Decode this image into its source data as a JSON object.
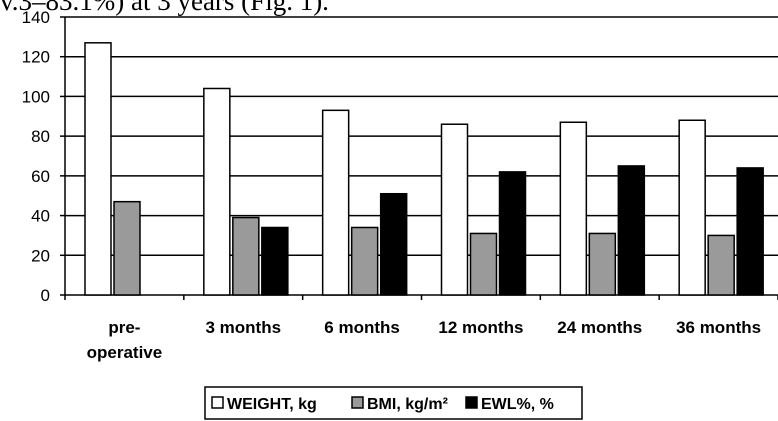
{
  "cropped_text": "v.3–83.1%) at 3 years (Fig. 1).",
  "chart_data": {
    "type": "bar",
    "categories": [
      [
        "pre-",
        "operative"
      ],
      [
        "3 months"
      ],
      [
        "6 months"
      ],
      [
        "12 months"
      ],
      [
        "24 months"
      ],
      [
        "36 months"
      ]
    ],
    "series": [
      {
        "name": "WEIGHT, kg",
        "color": "#ffffff",
        "values": [
          127,
          104,
          93,
          86,
          87,
          88
        ]
      },
      {
        "name": "BMI, kg/m²",
        "color": "#9a9a9a",
        "values": [
          47,
          39,
          34,
          31,
          31,
          30
        ]
      },
      {
        "name": "EWL%, %",
        "color": "#000000",
        "values": [
          null,
          34,
          51,
          62,
          65,
          64
        ]
      }
    ],
    "ylim": [
      0,
      140
    ],
    "yticks": [
      0,
      20,
      40,
      60,
      80,
      100,
      120,
      140
    ],
    "grid": true,
    "legend_position": "bottom",
    "title": "",
    "xlabel": "",
    "ylabel": ""
  }
}
